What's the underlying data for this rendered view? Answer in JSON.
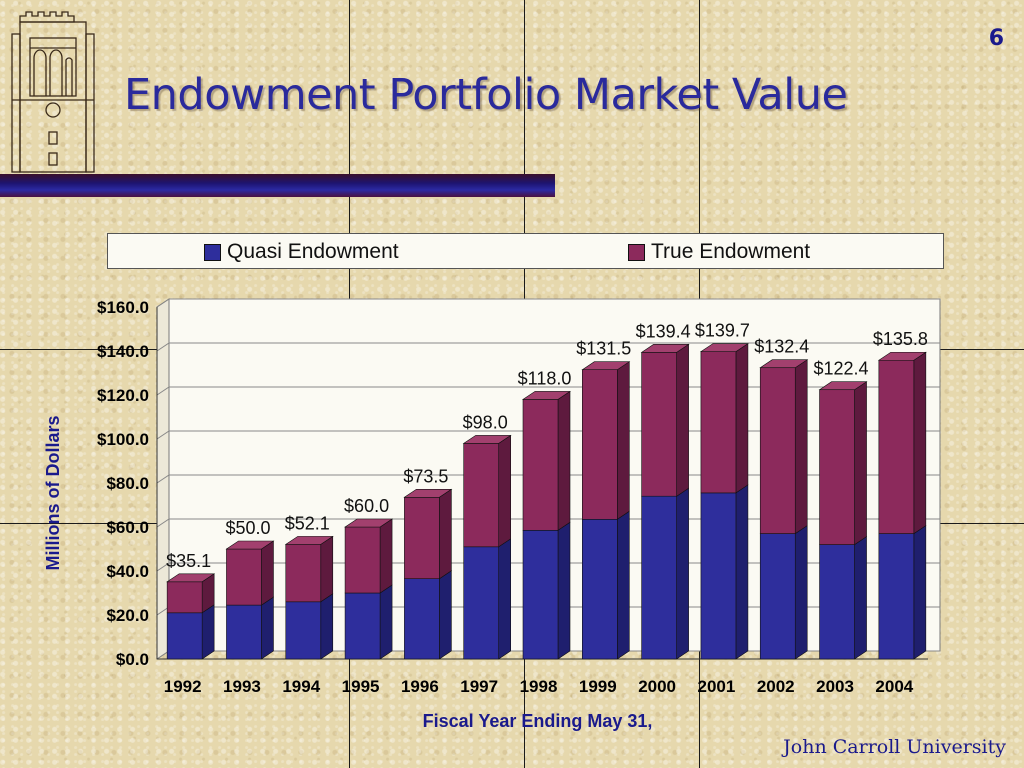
{
  "slide": {
    "number": "6",
    "title": "Endowment Portfolio Market Value",
    "brand": "John Carroll University"
  },
  "colors": {
    "quasi": "#2e2e9c",
    "quasi_side": "#1f1f6e",
    "true": "#8c2a5c",
    "true_side": "#5e1a3e",
    "title": "#2a2a9c",
    "label": "#1a1a8c"
  },
  "chart_data": {
    "type": "bar",
    "stacked": true,
    "categories": [
      "1992",
      "1993",
      "1994",
      "1995",
      "1996",
      "1997",
      "1998",
      "1999",
      "2000",
      "2001",
      "2002",
      "2003",
      "2004"
    ],
    "series": [
      {
        "name": "Quasi Endowment",
        "values": [
          21,
          24.5,
          26,
          30,
          36.5,
          51,
          58.5,
          63.5,
          74,
          75.5,
          57,
          52,
          57
        ]
      },
      {
        "name": "True Endowment",
        "values": [
          14.1,
          25.5,
          26.1,
          30,
          37,
          47,
          59.5,
          68,
          65.4,
          64.2,
          75.4,
          70.4,
          78.8
        ]
      }
    ],
    "totals": [
      35.1,
      50.0,
      52.1,
      60.0,
      73.5,
      98.0,
      118.0,
      131.5,
      139.4,
      139.7,
      132.4,
      122.4,
      135.8
    ],
    "total_labels": [
      "$35.1",
      "$50.0",
      "$52.1",
      "$60.0",
      "$73.5",
      "$98.0",
      "$118.0",
      "$131.5",
      "$139.4",
      "$139.7",
      "$132.4",
      "$122.4",
      "$135.8"
    ],
    "ylim": [
      0,
      160
    ],
    "yticks": [
      0,
      20,
      40,
      60,
      80,
      100,
      120,
      140,
      160
    ],
    "ytick_labels": [
      "$0.0",
      "$20.0",
      "$40.0",
      "$60.0",
      "$80.0",
      "$100.0",
      "$120.0",
      "$140.0",
      "$160.0"
    ],
    "xlabel": "Fiscal Year Ending May 31,",
    "ylabel": "Millions of Dollars",
    "legend": "top",
    "grid": true
  }
}
